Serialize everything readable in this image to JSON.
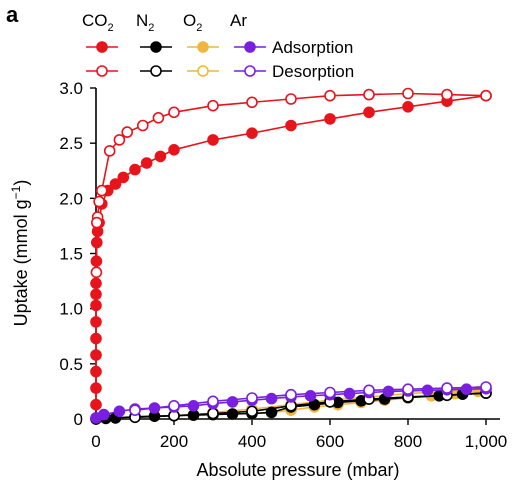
{
  "panel_label": "a",
  "chart_data": {
    "type": "scatter",
    "title": "",
    "xlabel": "Absolute pressure (mbar)",
    "ylabel_parts": {
      "main": "Uptake (mmol g",
      "sup": "−1",
      "end": ")"
    },
    "xlim": [
      -20,
      1040
    ],
    "ylim": [
      0,
      3.05
    ],
    "x_ticks": [
      0,
      200,
      400,
      600,
      800,
      1000
    ],
    "x_tick_labels": [
      "0",
      "200",
      "400",
      "600",
      "800",
      "1,000"
    ],
    "y_ticks": [
      0,
      0.5,
      1.0,
      1.5,
      2.0,
      2.5,
      3.0
    ],
    "y_tick_labels": [
      "0",
      "0.5",
      "1.0",
      "1.5",
      "2.0",
      "2.5",
      "3.0"
    ],
    "grid": false,
    "legend_position": "top",
    "legend": {
      "gases": [
        {
          "id": "co2",
          "base": "CO",
          "sub": "2"
        },
        {
          "id": "n2",
          "base": "N",
          "sub": "2"
        },
        {
          "id": "o2",
          "base": "O",
          "sub": "2"
        },
        {
          "id": "ar",
          "base": "Ar",
          "sub": ""
        }
      ],
      "adsorption_label": "Adsorption",
      "desorption_label": "Desorption"
    },
    "colors": {
      "co2": "#e8141c",
      "n2": "#000000",
      "o2": "#efb73e",
      "ar": "#7a1fe0"
    },
    "series": [
      {
        "gas": "co2",
        "mode": "adsorption",
        "x": [
          0,
          0,
          0,
          0,
          0,
          0,
          0,
          0,
          0,
          1,
          2,
          4,
          8,
          15,
          30,
          50,
          70,
          100,
          130,
          165,
          200,
          300,
          400,
          500,
          600,
          700,
          800,
          900,
          1000
        ],
        "y": [
          0.13,
          0.28,
          0.43,
          0.58,
          0.73,
          0.88,
          1.03,
          1.13,
          1.23,
          1.43,
          1.6,
          1.7,
          1.78,
          1.95,
          2.07,
          2.13,
          2.19,
          2.26,
          2.32,
          2.38,
          2.44,
          2.53,
          2.59,
          2.66,
          2.72,
          2.78,
          2.83,
          2.88,
          2.93
        ]
      },
      {
        "gas": "co2",
        "mode": "desorption",
        "x": [
          1000,
          900,
          800,
          700,
          600,
          500,
          400,
          300,
          200,
          160,
          120,
          80,
          60,
          35,
          15,
          8,
          4,
          2,
          1
        ],
        "y": [
          2.93,
          2.94,
          2.95,
          2.94,
          2.93,
          2.9,
          2.87,
          2.84,
          2.78,
          2.73,
          2.66,
          2.6,
          2.53,
          2.43,
          2.07,
          1.97,
          1.83,
          1.78,
          1.33
        ]
      },
      {
        "gas": "n2",
        "mode": "adsorption",
        "x": [
          0,
          25,
          50,
          100,
          150,
          200,
          250,
          300,
          350,
          400,
          450,
          500,
          560,
          620,
          680,
          740,
          800,
          880,
          940,
          1000
        ],
        "y": [
          0.0,
          0.005,
          0.01,
          0.02,
          0.025,
          0.03,
          0.035,
          0.04,
          0.045,
          0.05,
          0.06,
          0.11,
          0.13,
          0.15,
          0.165,
          0.18,
          0.195,
          0.21,
          0.225,
          0.235
        ]
      },
      {
        "gas": "n2",
        "mode": "desorption",
        "x": [
          1000,
          900,
          800,
          700,
          600,
          500,
          400,
          300,
          200,
          100
        ],
        "y": [
          0.235,
          0.215,
          0.2,
          0.18,
          0.155,
          0.12,
          0.07,
          0.05,
          0.03,
          0.015
        ]
      },
      {
        "gas": "o2",
        "mode": "adsorption",
        "x": [
          0,
          50,
          100,
          150,
          200,
          250,
          300,
          350,
          400,
          450,
          500,
          560,
          620,
          680,
          740,
          800,
          860,
          920,
          980,
          1000
        ],
        "y": [
          0.0,
          0.01,
          0.02,
          0.025,
          0.03,
          0.035,
          0.04,
          0.045,
          0.05,
          0.06,
          0.08,
          0.11,
          0.13,
          0.15,
          0.17,
          0.19,
          0.21,
          0.23,
          0.25,
          0.26
        ]
      },
      {
        "gas": "o2",
        "mode": "desorption",
        "x": [
          1000,
          900,
          800,
          700,
          600,
          500,
          400,
          300
        ],
        "y": [
          0.27,
          0.25,
          0.23,
          0.2,
          0.17,
          0.13,
          0.09,
          0.06
        ]
      },
      {
        "gas": "ar",
        "mode": "adsorption",
        "x": [
          0,
          20,
          60,
          100,
          150,
          200,
          250,
          300,
          350,
          400,
          450,
          500,
          550,
          600,
          650,
          700,
          750,
          800,
          850,
          900,
          950,
          1000
        ],
        "y": [
          0.01,
          0.04,
          0.07,
          0.09,
          0.1,
          0.11,
          0.12,
          0.14,
          0.155,
          0.17,
          0.185,
          0.2,
          0.21,
          0.22,
          0.23,
          0.24,
          0.25,
          0.255,
          0.26,
          0.265,
          0.27,
          0.275
        ]
      },
      {
        "gas": "ar",
        "mode": "desorption",
        "x": [
          1000,
          900,
          800,
          700,
          600,
          500,
          400,
          300,
          200,
          100
        ],
        "y": [
          0.29,
          0.28,
          0.27,
          0.26,
          0.24,
          0.22,
          0.19,
          0.16,
          0.12,
          0.08
        ]
      }
    ]
  }
}
